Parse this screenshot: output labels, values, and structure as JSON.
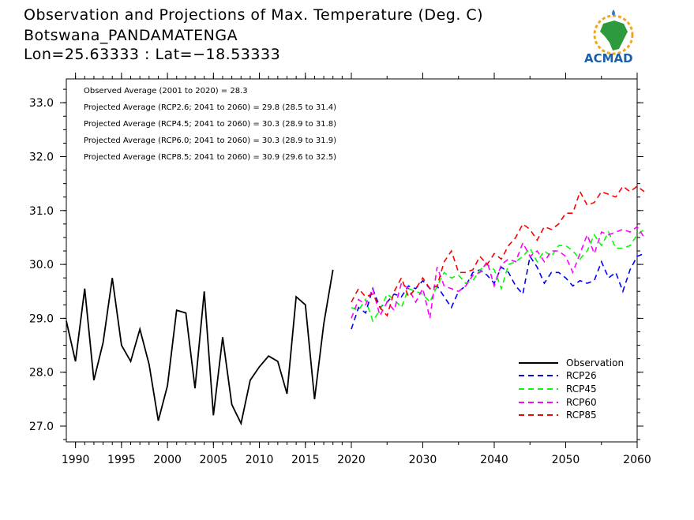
{
  "header": {
    "title": "Observation and Projections of Max. Temperature (Deg. C)",
    "location": "Botswana_PANDAMATENGA",
    "coords": "Lon=25.63333 : Lat=−18.53333"
  },
  "logo": {
    "text": "ACMAD",
    "icon": "africa-map-sun-icon"
  },
  "annotations": [
    "Observed Average (2001 to 2020) = 28.3",
    "Projected Average (RCP2.6; 2041 to 2060) = 29.8 (28.5 to 31.4)",
    "Projected Average (RCP4.5; 2041 to 2060) = 30.3 (28.9 to 31.8)",
    "Projected Average (RCP6.0; 2041 to 2060) = 30.3 (28.9 to 31.9)",
    "Projected Average (RCP8.5; 2041 to 2060) = 30.9 (29.6 to 32.5)"
  ],
  "chart_data": {
    "type": "line",
    "xlim": [
      1989,
      2060
    ],
    "ylim": [
      26.7,
      33.5
    ],
    "x_ticks": [
      1990,
      1995,
      2000,
      2005,
      2010,
      2015,
      2020,
      2030,
      2040,
      2050,
      2060
    ],
    "y_ticks": [
      27.0,
      28.0,
      29.0,
      30.0,
      31.0,
      32.0,
      33.0
    ],
    "y_tick_labels": [
      "27.0",
      "28.0",
      "29.0",
      "30.0",
      "31.0",
      "32.0",
      "33.0"
    ],
    "series": [
      {
        "name": "Observation",
        "color": "#000000",
        "dashed": false,
        "start_year": 1989,
        "values": [
          28.95,
          28.2,
          29.55,
          27.85,
          28.55,
          29.75,
          28.5,
          28.2,
          28.8,
          28.15,
          27.1,
          27.75,
          29.15,
          29.1,
          27.7,
          29.5,
          27.2,
          28.65,
          27.4,
          27.05,
          27.85,
          28.1,
          28.3,
          28.2,
          27.6,
          29.4,
          29.25,
          27.5,
          28.9,
          29.9
        ]
      },
      {
        "name": "RCP26",
        "color": "#0000ff",
        "dashed": true,
        "start_year": 2020,
        "values": [
          28.8,
          29.2,
          29.1,
          29.55,
          29.2,
          29.3,
          29.45,
          29.4,
          29.6,
          29.55,
          29.7,
          29.55,
          29.6,
          29.4,
          29.2,
          29.5,
          29.6,
          29.85,
          29.9,
          29.8,
          29.65,
          29.95,
          29.85,
          29.6,
          29.45,
          30.15,
          29.95,
          29.65,
          29.85,
          29.85,
          29.75,
          29.6,
          29.7,
          29.65,
          29.7,
          30.05,
          29.75,
          29.85,
          29.5,
          29.9,
          30.15,
          30.2
        ]
      },
      {
        "name": "RCP45",
        "color": "#00ff00",
        "dashed": true,
        "start_year": 2020,
        "values": [
          29.2,
          29.15,
          29.35,
          28.95,
          29.15,
          29.45,
          29.35,
          29.2,
          29.55,
          29.5,
          29.45,
          29.3,
          29.6,
          29.85,
          29.75,
          29.8,
          29.65,
          29.7,
          29.9,
          30.0,
          29.9,
          29.55,
          30.0,
          30.05,
          30.15,
          30.3,
          30.05,
          30.25,
          30.15,
          30.35,
          30.35,
          30.25,
          30.1,
          30.25,
          30.55,
          30.35,
          30.6,
          30.3,
          30.3,
          30.35,
          30.55,
          30.65
        ]
      },
      {
        "name": "RCP60",
        "color": "#ff00ff",
        "dashed": true,
        "start_year": 2020,
        "values": [
          29.0,
          29.35,
          29.25,
          29.55,
          29.05,
          29.3,
          29.15,
          29.65,
          29.55,
          29.3,
          29.55,
          29.0,
          29.95,
          29.6,
          29.55,
          29.5,
          29.6,
          29.8,
          29.85,
          30.05,
          29.6,
          30.0,
          30.1,
          30.05,
          30.4,
          30.15,
          30.25,
          30.05,
          30.25,
          30.25,
          30.15,
          29.85,
          30.2,
          30.55,
          30.2,
          30.6,
          30.55,
          30.6,
          30.65,
          30.6,
          30.7,
          30.5
        ]
      },
      {
        "name": "RCP85",
        "color": "#ff0000",
        "dashed": true,
        "start_year": 2020,
        "values": [
          29.3,
          29.55,
          29.4,
          29.45,
          29.2,
          29.05,
          29.5,
          29.75,
          29.4,
          29.55,
          29.75,
          29.55,
          29.6,
          30.05,
          30.25,
          29.85,
          29.85,
          29.9,
          30.15,
          30.0,
          30.2,
          30.1,
          30.35,
          30.5,
          30.75,
          30.65,
          30.45,
          30.7,
          30.65,
          30.75,
          30.95,
          30.95,
          31.35,
          31.1,
          31.15,
          31.35,
          31.3,
          31.25,
          31.45,
          31.35,
          31.45,
          31.35
        ]
      }
    ]
  }
}
